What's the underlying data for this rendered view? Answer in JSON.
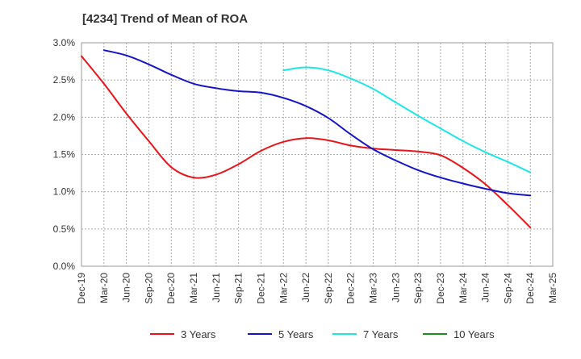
{
  "chart_data": {
    "type": "line",
    "title": "[4234]  Trend of Mean of ROA",
    "xlabel": "",
    "ylabel": "",
    "x_ticks": [
      "Dec-19",
      "Mar-20",
      "Jun-20",
      "Sep-20",
      "Dec-20",
      "Mar-21",
      "Jun-21",
      "Sep-21",
      "Dec-21",
      "Mar-22",
      "Jun-22",
      "Sep-22",
      "Dec-22",
      "Mar-23",
      "Jun-23",
      "Sep-23",
      "Dec-23",
      "Mar-24",
      "Jun-24",
      "Sep-24",
      "Dec-24",
      "Mar-25"
    ],
    "y_ticks": [
      "0.0%",
      "0.5%",
      "1.0%",
      "1.5%",
      "2.0%",
      "2.5%",
      "3.0%"
    ],
    "ylim": [
      0,
      3.0
    ],
    "y_unit": "%",
    "grid": true,
    "legend_position": "bottom",
    "series": [
      {
        "name": "3 Years",
        "color": "#e8141a",
        "x": [
          "Dec-19",
          "Mar-20",
          "Jun-20",
          "Sep-20",
          "Dec-20",
          "Mar-21",
          "Jun-21",
          "Sep-21",
          "Dec-21",
          "Mar-22",
          "Jun-22",
          "Sep-22",
          "Dec-22",
          "Mar-23",
          "Jun-23",
          "Sep-23",
          "Dec-23",
          "Mar-24",
          "Jun-24",
          "Sep-24",
          "Dec-24"
        ],
        "values": [
          2.82,
          2.45,
          2.05,
          1.68,
          1.33,
          1.19,
          1.23,
          1.37,
          1.55,
          1.67,
          1.72,
          1.69,
          1.62,
          1.58,
          1.56,
          1.54,
          1.49,
          1.32,
          1.1,
          0.82,
          0.52
        ]
      },
      {
        "name": "5 Years",
        "color": "#1414c8",
        "x": [
          "Mar-20",
          "Jun-20",
          "Sep-20",
          "Dec-20",
          "Mar-21",
          "Jun-21",
          "Sep-21",
          "Dec-21",
          "Mar-22",
          "Jun-22",
          "Sep-22",
          "Dec-22",
          "Mar-23",
          "Jun-23",
          "Sep-23",
          "Dec-23",
          "Mar-24",
          "Jun-24",
          "Sep-24",
          "Dec-24"
        ],
        "values": [
          2.9,
          2.83,
          2.71,
          2.57,
          2.45,
          2.39,
          2.35,
          2.33,
          2.26,
          2.15,
          1.99,
          1.77,
          1.57,
          1.42,
          1.29,
          1.19,
          1.11,
          1.04,
          0.98,
          0.95
        ]
      },
      {
        "name": "7 Years",
        "color": "#1ee6e6",
        "x": [
          "Mar-22",
          "Jun-22",
          "Sep-22",
          "Dec-22",
          "Mar-23",
          "Jun-23",
          "Sep-23",
          "Dec-23",
          "Mar-24",
          "Jun-24",
          "Sep-24",
          "Dec-24"
        ],
        "values": [
          2.63,
          2.67,
          2.63,
          2.52,
          2.38,
          2.2,
          2.02,
          1.85,
          1.68,
          1.53,
          1.4,
          1.26
        ]
      },
      {
        "name": "10 Years",
        "color": "#1e8c1e",
        "x": [],
        "values": []
      }
    ]
  }
}
